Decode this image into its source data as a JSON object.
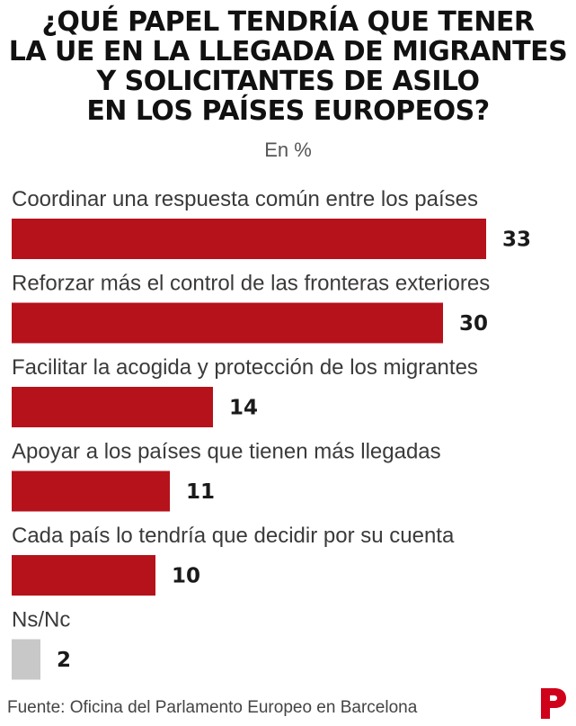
{
  "title_lines": [
    "¿QUÉ PAPEL TENDRÍA QUE TENER",
    "LA UE EN LA LLEGADA DE MIGRANTES",
    "Y SOLICITANTES DE ASILO",
    "EN LOS PAÍSES EUROPEOS?"
  ],
  "subtitle": "En %",
  "source": "Fuente: Oficina del Parlamento Europeo en Barcelona",
  "logo_name": "periodico-logo",
  "colors": {
    "bar": "#b5121b",
    "bar_nsnc": "#c8c8c8",
    "logo": "#d0021b"
  },
  "chart_data": {
    "type": "bar",
    "orientation": "horizontal",
    "categories": [
      "Coordinar una respuesta común entre los países",
      "Reforzar más el control de las fronteras exteriores",
      "Facilitar la acogida y protección de los migrantes",
      "Apoyar a los países que tienen más llegadas",
      "Cada país lo tendría que decidir por su cuenta",
      "Ns/Nc"
    ],
    "values": [
      33,
      30,
      14,
      11,
      10,
      2
    ],
    "value_labels": [
      "33",
      "30",
      "14",
      "11",
      "10",
      "2"
    ],
    "title": "¿QUÉ PAPEL TENDRÍA QUE TENER LA UE EN LA LLEGADA DE MIGRANTES Y SOLICITANTES DE ASILO EN LOS PAÍSES EUROPEOS?",
    "subtitle": "En %",
    "xlim": [
      0,
      33
    ],
    "grid": false,
    "legend": "none"
  }
}
